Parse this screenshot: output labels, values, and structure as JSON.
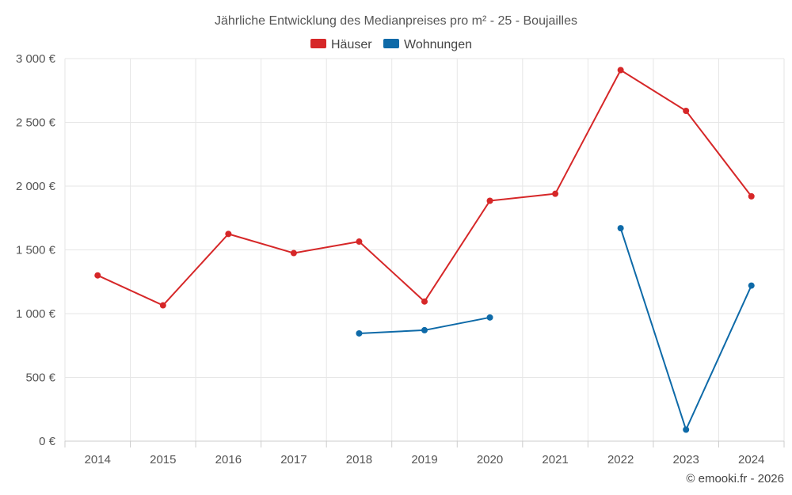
{
  "chart_data": {
    "type": "line",
    "title": "Jährliche Entwicklung des Medianpreises pro m² - 25 - Boujailles",
    "categories": [
      "2014",
      "2015",
      "2016",
      "2017",
      "2018",
      "2019",
      "2020",
      "2021",
      "2022",
      "2023",
      "2024"
    ],
    "series": [
      {
        "name": "Häuser",
        "color": "#d62728",
        "values": [
          1300,
          1065,
          1625,
          1475,
          1565,
          1095,
          1885,
          1940,
          2910,
          2590,
          1920
        ]
      },
      {
        "name": "Wohnungen",
        "color": "#0e6aa8",
        "values": [
          null,
          null,
          null,
          null,
          845,
          870,
          970,
          null,
          1670,
          90,
          1220
        ]
      }
    ],
    "ylim": [
      0,
      3000
    ],
    "yticks": [
      0,
      500,
      1000,
      1500,
      2000,
      2500,
      3000
    ],
    "ytick_labels": [
      "0 €",
      "500 €",
      "1 000 €",
      "1 500 €",
      "2 000 €",
      "2 500 €",
      "3 000 €"
    ],
    "xlabel": "",
    "ylabel": "",
    "legend_position": "top-center",
    "grid": true
  },
  "credit": "© emooki.fr - 2026"
}
